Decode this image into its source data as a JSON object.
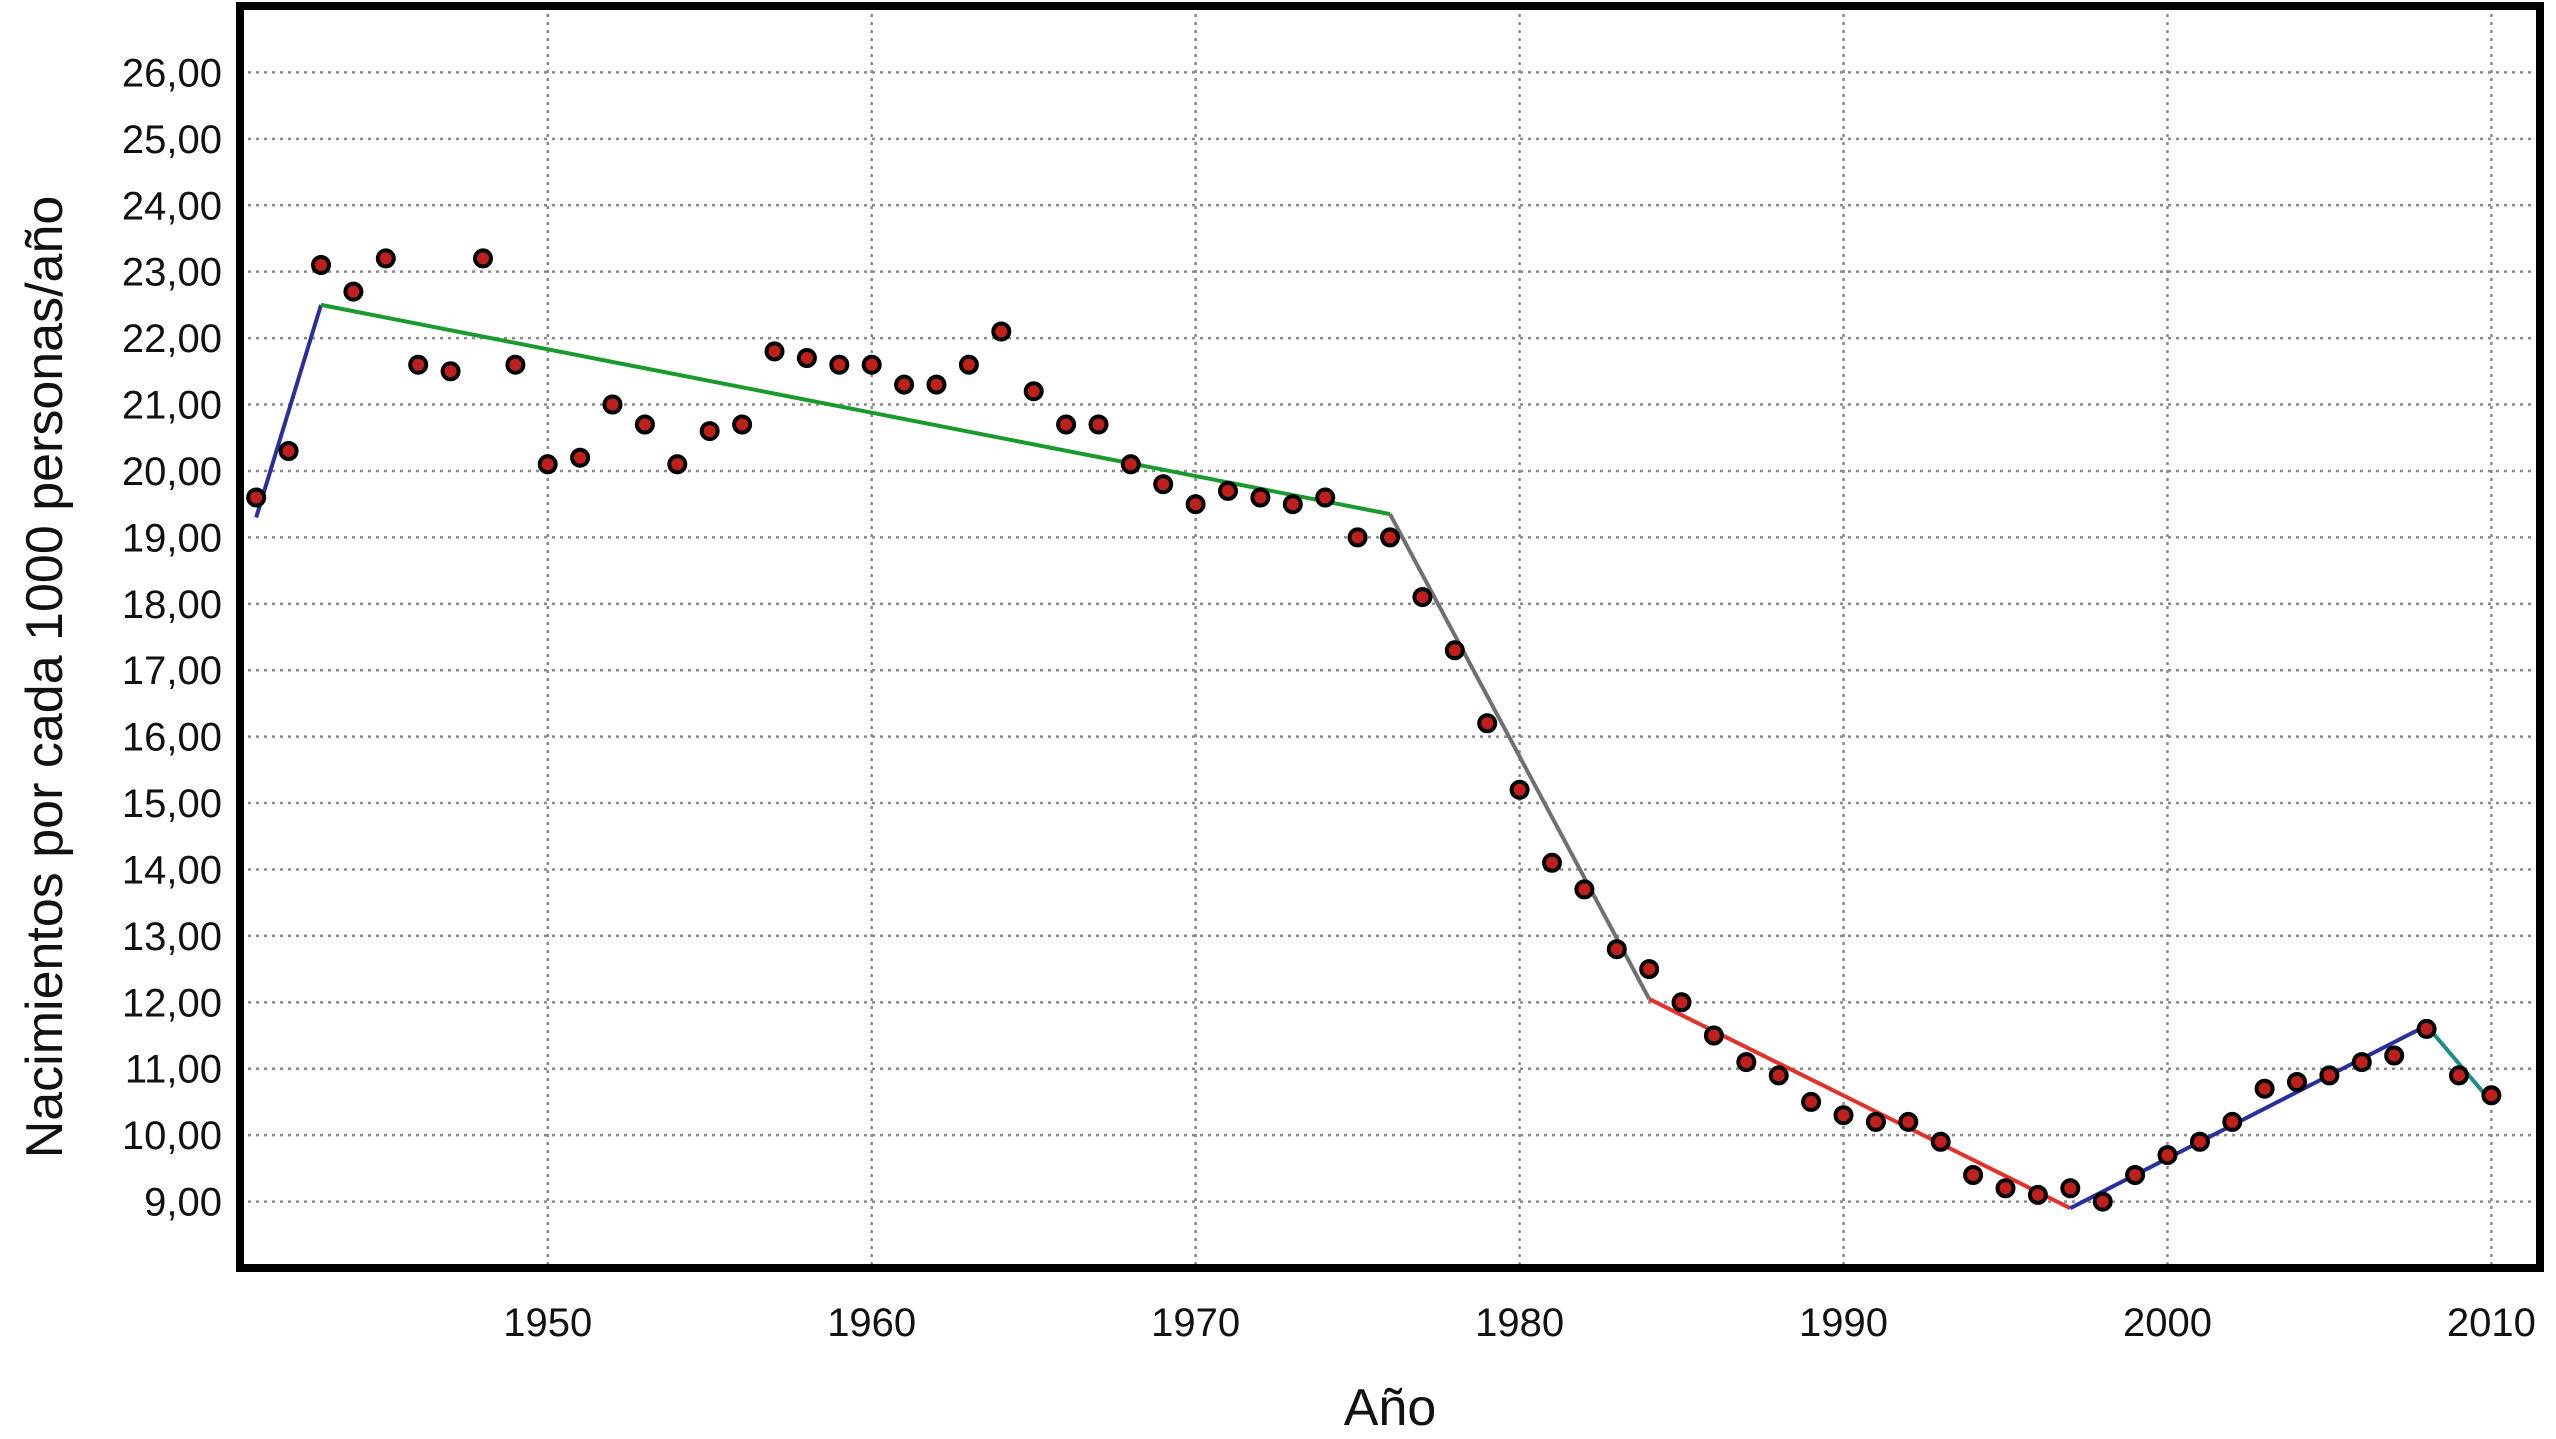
{
  "chart_data": {
    "type": "scatter",
    "title": "",
    "xlabel": "Año",
    "ylabel": "Nacimientos por cada 1000 personas/año",
    "xlim": [
      1940.5,
      2011.5
    ],
    "ylim": [
      8,
      27
    ],
    "x_ticks": [
      1950,
      1960,
      1970,
      1980,
      1990,
      2000,
      2010
    ],
    "y_ticks": [
      9,
      10,
      11,
      12,
      13,
      14,
      15,
      16,
      17,
      18,
      19,
      20,
      21,
      22,
      23,
      24,
      25,
      26
    ],
    "y_tick_labels": [
      "9,00",
      "10,00",
      "11,00",
      "12,00",
      "13,00",
      "14,00",
      "15,00",
      "16,00",
      "17,00",
      "18,00",
      "19,00",
      "20,00",
      "21,00",
      "22,00",
      "23,00",
      "24,00",
      "25,00",
      "26,00"
    ],
    "grid": true,
    "legend": "none",
    "point_color": "#c0201c",
    "point_edge_color": "#000000",
    "points": [
      [
        1941,
        19.6
      ],
      [
        1942,
        20.3
      ],
      [
        1943,
        23.1
      ],
      [
        1944,
        22.7
      ],
      [
        1945,
        23.2
      ],
      [
        1946,
        21.6
      ],
      [
        1947,
        21.5
      ],
      [
        1948,
        23.2
      ],
      [
        1949,
        21.6
      ],
      [
        1950,
        20.1
      ],
      [
        1951,
        20.2
      ],
      [
        1952,
        21.0
      ],
      [
        1953,
        20.7
      ],
      [
        1954,
        20.1
      ],
      [
        1955,
        20.6
      ],
      [
        1956,
        20.7
      ],
      [
        1957,
        21.8
      ],
      [
        1958,
        21.7
      ],
      [
        1959,
        21.6
      ],
      [
        1960,
        21.6
      ],
      [
        1961,
        21.3
      ],
      [
        1962,
        21.3
      ],
      [
        1963,
        21.6
      ],
      [
        1964,
        22.1
      ],
      [
        1965,
        21.2
      ],
      [
        1966,
        20.7
      ],
      [
        1967,
        20.7
      ],
      [
        1968,
        20.1
      ],
      [
        1969,
        19.8
      ],
      [
        1970,
        19.5
      ],
      [
        1971,
        19.7
      ],
      [
        1972,
        19.6
      ],
      [
        1973,
        19.5
      ],
      [
        1974,
        19.6
      ],
      [
        1975,
        19.0
      ],
      [
        1976,
        19.0
      ],
      [
        1977,
        18.1
      ],
      [
        1978,
        17.3
      ],
      [
        1979,
        16.2
      ],
      [
        1980,
        15.2
      ],
      [
        1981,
        14.1
      ],
      [
        1982,
        13.7
      ],
      [
        1983,
        12.8
      ],
      [
        1984,
        12.5
      ],
      [
        1985,
        12.0
      ],
      [
        1986,
        11.5
      ],
      [
        1987,
        11.1
      ],
      [
        1988,
        10.9
      ],
      [
        1989,
        10.5
      ],
      [
        1990,
        10.3
      ],
      [
        1991,
        10.2
      ],
      [
        1992,
        10.2
      ],
      [
        1993,
        9.9
      ],
      [
        1994,
        9.4
      ],
      [
        1995,
        9.2
      ],
      [
        1996,
        9.1
      ],
      [
        1997,
        9.2
      ],
      [
        1998,
        9.0
      ],
      [
        1999,
        9.4
      ],
      [
        2000,
        9.7
      ],
      [
        2001,
        9.9
      ],
      [
        2002,
        10.2
      ],
      [
        2003,
        10.7
      ],
      [
        2004,
        10.8
      ],
      [
        2005,
        10.9
      ],
      [
        2006,
        11.1
      ],
      [
        2007,
        11.2
      ],
      [
        2008,
        11.6
      ],
      [
        2009,
        10.9
      ],
      [
        2010,
        10.6
      ]
    ],
    "segments": [
      {
        "color": "#2b2f9c",
        "points": [
          [
            1941,
            19.3
          ],
          [
            1943,
            22.5
          ]
        ]
      },
      {
        "color": "#199a2c",
        "points": [
          [
            1943,
            22.5
          ],
          [
            1976,
            19.35
          ]
        ]
      },
      {
        "color": "#707070",
        "points": [
          [
            1976,
            19.35
          ],
          [
            1984,
            12.05
          ]
        ]
      },
      {
        "color": "#e3302a",
        "points": [
          [
            1984,
            12.05
          ],
          [
            1997,
            8.9
          ]
        ]
      },
      {
        "color": "#2b2f9c",
        "points": [
          [
            1997,
            8.9
          ],
          [
            2008,
            11.65
          ]
        ]
      },
      {
        "color": "#1b8e8a",
        "points": [
          [
            2008,
            11.65
          ],
          [
            2010,
            10.5
          ]
        ]
      }
    ]
  }
}
